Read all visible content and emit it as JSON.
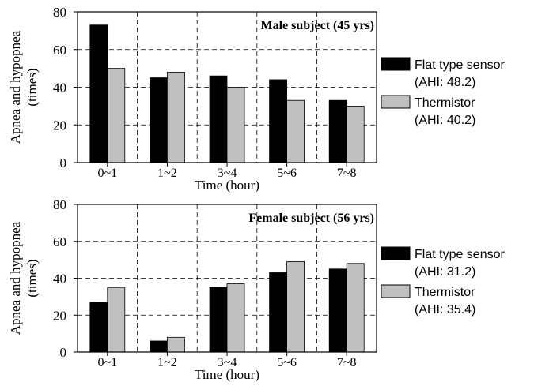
{
  "chart_data": [
    {
      "type": "bar",
      "title": "Male subject (45 yrs)",
      "xlabel": "Time (hour)",
      "ylabel_line1": "Apnea and hypopnea",
      "ylabel_line2": "(times)",
      "ylim": [
        0,
        80
      ],
      "yticks": [
        0,
        20,
        40,
        60,
        80
      ],
      "grid": true,
      "legend_position": "right",
      "categories": [
        "0~1",
        "1~2",
        "3~4",
        "5~6",
        "7~8"
      ],
      "series": [
        {
          "name": "Flat type sensor",
          "note": "(AHI: 48.2)",
          "color": "#000000",
          "values": [
            73,
            45,
            46,
            44,
            33
          ]
        },
        {
          "name": "Thermistor",
          "note": "(AHI: 40.2)",
          "color": "#c0c0c0",
          "values": [
            50,
            48,
            40,
            33,
            30
          ]
        }
      ]
    },
    {
      "type": "bar",
      "title": "Female subject (56 yrs)",
      "xlabel": "Time (hour)",
      "ylabel_line1": "Apnea and hypopnea",
      "ylabel_line2": "(times)",
      "ylim": [
        0,
        80
      ],
      "yticks": [
        0,
        20,
        40,
        60,
        80
      ],
      "grid": true,
      "legend_position": "right",
      "categories": [
        "0~1",
        "1~2",
        "3~4",
        "5~6",
        "7~8"
      ],
      "series": [
        {
          "name": "Flat type sensor",
          "note": "(AHI: 31.2)",
          "color": "#000000",
          "values": [
            27,
            6,
            35,
            43,
            45
          ]
        },
        {
          "name": "Thermistor",
          "note": "(AHI: 35.4)",
          "color": "#c0c0c0",
          "values": [
            35,
            8,
            37,
            49,
            48
          ]
        }
      ]
    }
  ]
}
